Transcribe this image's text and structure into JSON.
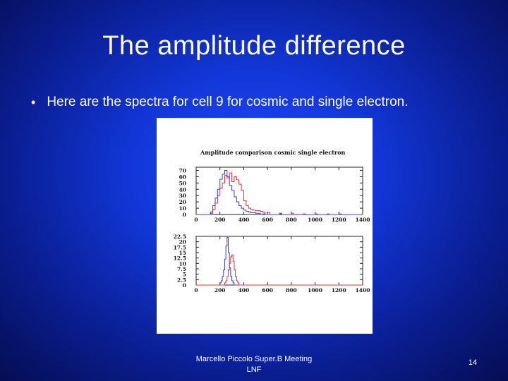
{
  "slide": {
    "title": "The amplitude difference",
    "bullet": "Here are the spectra for  cell 9  for cosmic and single electron.",
    "footer_line1": "Marcello Piccolo Super.B Meeting",
    "footer_line2": "LNF",
    "page_number": "14"
  },
  "colors": {
    "cosmic": "#3344cc",
    "electron": "#dd3333",
    "background_center": "#1f49ff",
    "background_edge": "#050d52"
  },
  "chart_data": [
    {
      "type": "bar",
      "title": "Amplitude comparison cosmic single electron",
      "xlim": [
        0,
        1400
      ],
      "ylim": [
        0,
        75
      ],
      "xticks": [
        "0",
        "200",
        "400",
        "600",
        "800",
        "1000",
        "1200",
        "1400"
      ],
      "yticks": [
        "0",
        "10",
        "20",
        "30",
        "40",
        "50",
        "60",
        "70"
      ],
      "bin_width": 20,
      "series": [
        {
          "color": "#dd3333",
          "bins": [
            [
              120,
              2
            ],
            [
              140,
              8
            ],
            [
              160,
              18
            ],
            [
              180,
              30
            ],
            [
              200,
              42
            ],
            [
              220,
              50
            ],
            [
              240,
              62
            ],
            [
              260,
              58
            ],
            [
              280,
              66
            ],
            [
              300,
              52
            ],
            [
              320,
              60
            ],
            [
              340,
              55
            ],
            [
              360,
              48
            ],
            [
              380,
              38
            ],
            [
              400,
              22
            ],
            [
              420,
              14
            ],
            [
              440,
              10
            ],
            [
              460,
              8
            ],
            [
              480,
              7
            ],
            [
              500,
              6
            ],
            [
              520,
              6
            ],
            [
              540,
              5
            ],
            [
              560,
              4
            ],
            [
              600,
              3
            ],
            [
              700,
              2
            ],
            [
              800,
              2
            ],
            [
              900,
              1
            ],
            [
              1000,
              1
            ],
            [
              1100,
              1
            ],
            [
              1200,
              1
            ]
          ]
        },
        {
          "color": "#3344cc",
          "bins": [
            [
              120,
              4
            ],
            [
              140,
              14
            ],
            [
              160,
              26
            ],
            [
              180,
              40
            ],
            [
              200,
              56
            ],
            [
              220,
              64
            ],
            [
              240,
              70
            ],
            [
              260,
              60
            ],
            [
              280,
              46
            ],
            [
              300,
              38
            ],
            [
              320,
              28
            ],
            [
              340,
              20
            ],
            [
              360,
              14
            ],
            [
              380,
              10
            ],
            [
              400,
              7
            ],
            [
              420,
              5
            ],
            [
              440,
              4
            ],
            [
              460,
              3
            ],
            [
              480,
              3
            ],
            [
              500,
              2
            ],
            [
              520,
              2
            ],
            [
              560,
              1
            ],
            [
              700,
              1
            ]
          ]
        }
      ]
    },
    {
      "type": "bar",
      "title": "",
      "xlim": [
        0,
        1400
      ],
      "ylim": [
        0,
        22.5
      ],
      "xticks": [
        "0",
        "200",
        "400",
        "600",
        "800",
        "1000",
        "1200",
        "1400"
      ],
      "yticks": [
        "0",
        "2.5",
        "5",
        "7.5",
        "10",
        "12.5",
        "15",
        "17.5",
        "20",
        "22.5"
      ],
      "bin_width": 10,
      "series": [
        {
          "color": "#3344cc",
          "bins": [
            [
              200,
              1
            ],
            [
              210,
              2
            ],
            [
              220,
              4
            ],
            [
              230,
              7
            ],
            [
              240,
              12
            ],
            [
              250,
              18
            ],
            [
              260,
              22
            ],
            [
              270,
              15
            ],
            [
              280,
              8
            ],
            [
              290,
              4
            ],
            [
              300,
              2
            ],
            [
              310,
              1
            ]
          ]
        },
        {
          "color": "#dd3333",
          "bins": [
            [
              240,
              1
            ],
            [
              250,
              2
            ],
            [
              260,
              4
            ],
            [
              270,
              7
            ],
            [
              280,
              10
            ],
            [
              290,
              13
            ],
            [
              300,
              14
            ],
            [
              310,
              11
            ],
            [
              320,
              7
            ],
            [
              330,
              4
            ],
            [
              340,
              2
            ],
            [
              350,
              1
            ]
          ]
        }
      ]
    }
  ]
}
